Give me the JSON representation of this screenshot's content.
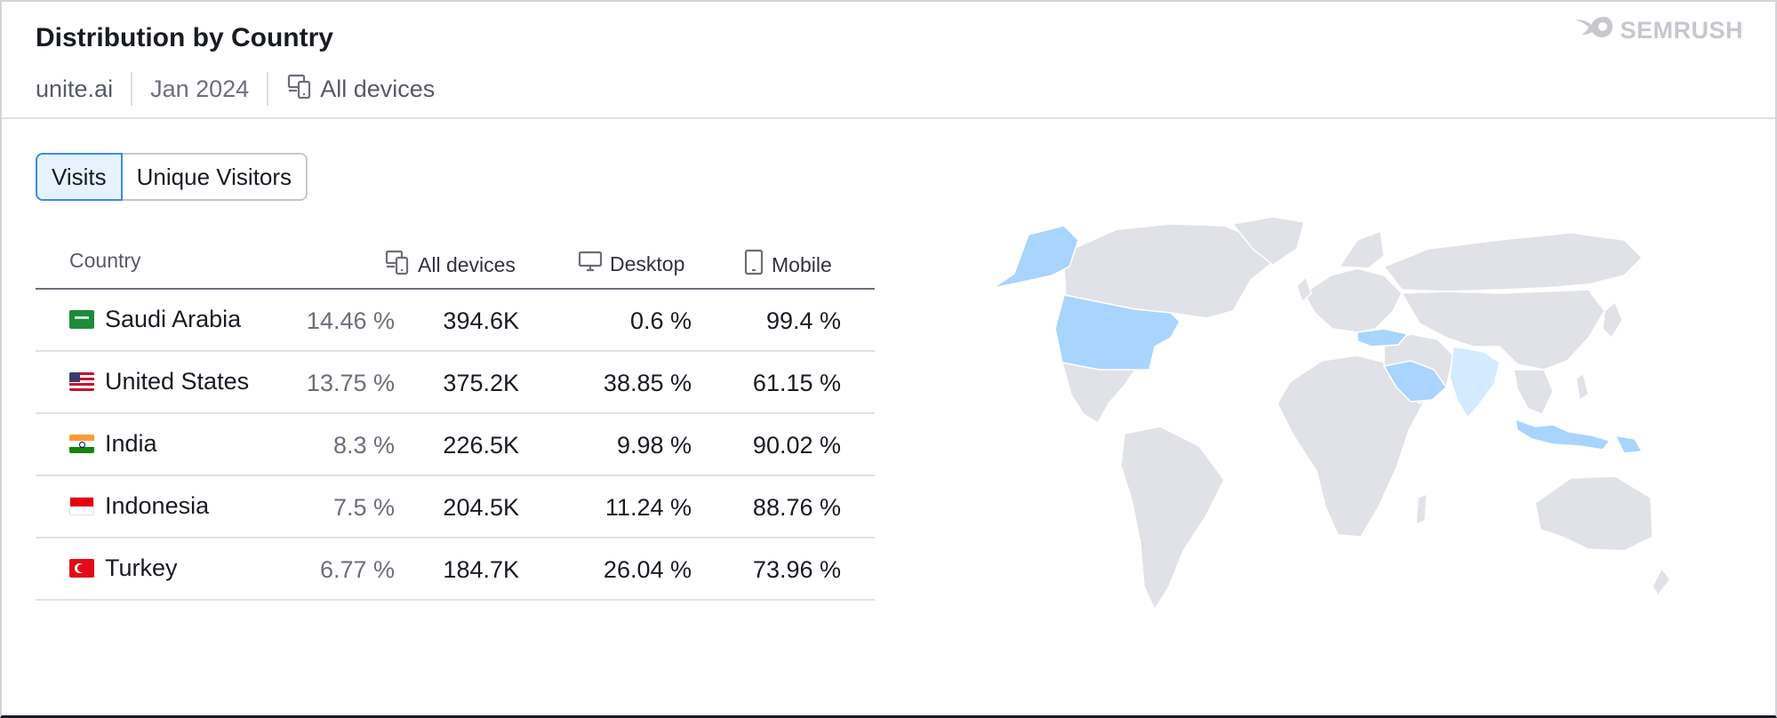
{
  "header": {
    "title": "Distribution by Country",
    "domain": "unite.ai",
    "date": "Jan 2024",
    "device_filter": "All devices",
    "logo_text": "SEMRUSH"
  },
  "tabs": [
    {
      "label": "Visits",
      "active": true
    },
    {
      "label": "Unique Visitors",
      "active": false
    }
  ],
  "table": {
    "columns": {
      "country": "Country",
      "all_devices": "All devices",
      "desktop": "Desktop",
      "mobile": "Mobile"
    },
    "rows": [
      {
        "country": "Saudi Arabia",
        "flag": "flag-sa",
        "share": "14.46 %",
        "visits": "394.6K",
        "desktop": "0.6 %",
        "mobile": "99.4 %"
      },
      {
        "country": "United States",
        "flag": "flag-us",
        "share": "13.75 %",
        "visits": "375.2K",
        "desktop": "38.85 %",
        "mobile": "61.15  %"
      },
      {
        "country": "India",
        "flag": "flag-in",
        "share": "8.3 %",
        "visits": "226.5K",
        "desktop": "9.98 %",
        "mobile": "90.02 %"
      },
      {
        "country": "Indonesia",
        "flag": "flag-id",
        "share": "7.5 %",
        "visits": "204.5K",
        "desktop": "11.24  %",
        "mobile": "88.76 %"
      },
      {
        "country": "Turkey",
        "flag": "flag-tr",
        "share": "6.77 %",
        "visits": "184.7K",
        "desktop": "26.04 %",
        "mobile": "73.96 %"
      }
    ]
  },
  "map": {
    "base_color": "#e1e2e7",
    "highlight_strong": "#a8d4fd",
    "highlight_light": "#d4eafe",
    "highlighted_countries": [
      "Saudi Arabia",
      "United States",
      "India",
      "Indonesia",
      "Turkey"
    ]
  },
  "colors": {
    "accent": "#3a8fdb",
    "active_tab_bg": "#e6f3ff"
  }
}
